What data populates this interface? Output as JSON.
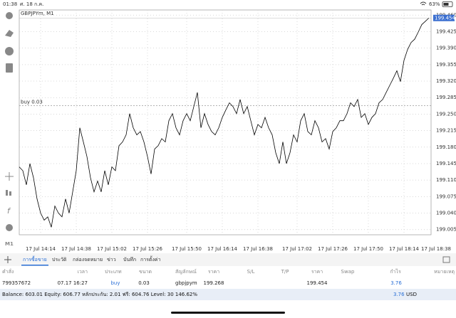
{
  "status_bar": {
    "time": "01:38",
    "date": "ศ. 18 ก.ค.",
    "battery": "63%"
  },
  "sidebar": {
    "timeframe": "M1"
  },
  "chart_data": {
    "type": "line",
    "title": "GBPJPYm, M1",
    "color": "#000000",
    "categories": [
      null,
      null,
      null,
      null,
      null,
      null,
      "17 Jul 14:14",
      null,
      null,
      null,
      null,
      null,
      null,
      null,
      null,
      null,
      "17 Jul 14:38",
      null,
      null,
      null,
      null,
      null,
      null,
      null,
      null,
      null,
      "17 Jul 15:02",
      null,
      null,
      null,
      null,
      null,
      null,
      null,
      null,
      null,
      "17 Jul 15:26",
      null,
      null,
      null,
      null,
      null,
      null,
      null,
      null,
      null,
      null,
      "17 Jul 15:50",
      null,
      null,
      null,
      null,
      null,
      null,
      null,
      null,
      null,
      "17 Jul 16:14",
      null,
      null,
      null,
      null,
      null,
      null,
      null,
      null,
      null,
      "17 Jul 16:38",
      null,
      null,
      null,
      null,
      null,
      null,
      null,
      null,
      null,
      null,
      "17 Jul 17:02",
      null,
      null,
      null,
      null,
      null,
      null,
      null,
      null,
      null,
      "17 Jul 17:26",
      null,
      null,
      null,
      null,
      null,
      null,
      null,
      null,
      null,
      "17 Jul 17:50",
      null,
      null,
      null,
      null,
      null,
      null,
      null,
      null,
      null,
      "17 Jul 18:14",
      null,
      null,
      null,
      null,
      null,
      null,
      null,
      null,
      "17 Jul 18:38"
    ],
    "values": [
      199.138,
      199.13,
      199.1,
      199.145,
      199.115,
      199.07,
      199.04,
      199.025,
      199.032,
      199.01,
      199.055,
      199.04,
      199.032,
      199.07,
      199.04,
      199.085,
      199.13,
      199.221,
      199.191,
      199.16,
      199.115,
      199.085,
      199.108,
      199.085,
      199.13,
      199.1,
      199.138,
      199.13,
      199.183,
      199.191,
      199.206,
      199.251,
      199.221,
      199.206,
      199.213,
      199.191,
      199.16,
      199.123,
      199.176,
      199.183,
      199.198,
      199.191,
      199.236,
      199.251,
      199.221,
      199.206,
      199.236,
      199.251,
      199.236,
      199.266,
      199.296,
      199.221,
      199.251,
      199.228,
      199.213,
      199.206,
      199.221,
      199.243,
      199.259,
      199.274,
      199.266,
      199.251,
      199.281,
      199.251,
      199.266,
      199.236,
      199.206,
      199.228,
      199.221,
      199.243,
      199.221,
      199.206,
      199.168,
      199.145,
      199.191,
      199.145,
      199.168,
      199.206,
      199.191,
      199.236,
      199.251,
      199.213,
      199.206,
      199.236,
      199.221,
      199.191,
      199.198,
      199.176,
      199.213,
      199.221,
      199.236,
      199.236,
      199.251,
      199.274,
      199.266,
      199.281,
      199.243,
      199.251,
      199.228,
      199.243,
      199.251,
      199.274,
      199.281,
      199.296,
      199.311,
      199.326,
      199.342,
      199.319,
      199.364,
      199.387,
      199.402,
      199.409,
      199.424,
      199.44,
      199.447,
      199.454,
      null,
      null
    ],
    "ylim": [
      198.994,
      199.471
    ],
    "yticks": [
      {
        "value": 199.46,
        "label": "199.460"
      },
      199.425,
      {
        "value": 199.39,
        "label": "199.390"
      },
      199.355,
      {
        "value": 199.32,
        "label": "199.320"
      },
      199.285,
      {
        "value": 199.25,
        "label": "199.250"
      },
      199.215,
      {
        "value": 199.18,
        "label": "199.180"
      },
      199.145,
      {
        "value": 199.11,
        "label": "199.110"
      },
      199.075,
      {
        "value": 199.04,
        "label": "199.040"
      },
      199.005
    ],
    "grid": true,
    "current_price": 199.454,
    "order_line": {
      "label": "buy 0.03",
      "value": 199.268
    }
  },
  "tabs": [
    "การซื้อขาย",
    "ประวัติ",
    "กล่องจดหมาย",
    "ข่าว",
    "บันทึก",
    "การตั้งค่า"
  ],
  "table": {
    "headers": [
      "คำสั่ง",
      "เวลา",
      "ประเภท",
      "ขนาด",
      "สัญลักษณ์",
      "ราคา",
      "S/L",
      "T/P",
      "ราคา",
      "Swap",
      "กำไร",
      "หมายเหตุ"
    ],
    "row": {
      "order": "799357672",
      "time": "07.17 16:27",
      "type": "buy",
      "size": "0.03",
      "symbol": "gbpjpym",
      "open_price": "199.268",
      "current_price": "199.454",
      "profit": "3.76"
    }
  },
  "footer": {
    "summary": "Balance: 603.01 Equity: 606.77 หลักประกัน: 2.01 ฟรี: 604.76 Level: 30 146.62%",
    "profit": "3.76",
    "currency": "USD"
  }
}
